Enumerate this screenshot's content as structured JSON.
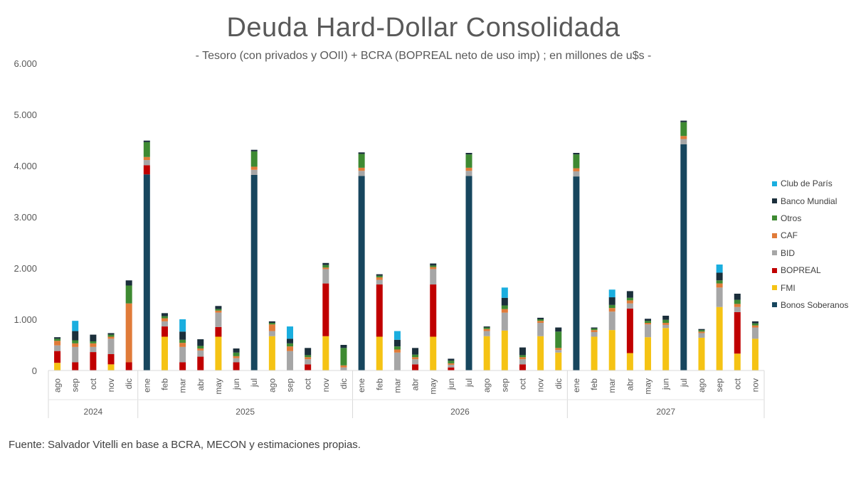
{
  "chart_data": {
    "type": "bar",
    "stacked": true,
    "title": "Deuda Hard-Dollar Consolidada",
    "subtitle": "- Tesoro (con privados y OOII) + BCRA (BOPREAL neto de uso imp) ; en millones de u$s -",
    "ylim": [
      0,
      6000
    ],
    "yticks": [
      "0",
      "1.000",
      "2.000",
      "3.000",
      "4.000",
      "5.000",
      "6.000"
    ],
    "grid": false,
    "legend_position": "right",
    "categories": [
      "ago",
      "sep",
      "oct",
      "nov",
      "dic",
      "ene",
      "feb",
      "mar",
      "abr",
      "may",
      "jun",
      "jul",
      "ago",
      "sep",
      "oct",
      "nov",
      "dic",
      "ene",
      "feb",
      "mar",
      "abr",
      "may",
      "jun",
      "jul",
      "ago",
      "sep",
      "oct",
      "nov",
      "dic",
      "ene",
      "feb",
      "mar",
      "abr",
      "may",
      "jun",
      "jul",
      "ago",
      "sep",
      "oct",
      "nov"
    ],
    "year_groups": [
      {
        "label": "2024",
        "count": 5
      },
      {
        "label": "2025",
        "count": 12
      },
      {
        "label": "2026",
        "count": 12
      },
      {
        "label": "2027",
        "count": 11
      }
    ],
    "series": [
      {
        "name": "Bonos Soberanos",
        "color": "#17465e",
        "values": [
          0,
          0,
          0,
          0,
          0,
          3830,
          0,
          0,
          0,
          0,
          0,
          3820,
          0,
          0,
          0,
          0,
          0,
          3800,
          0,
          0,
          0,
          0,
          0,
          3800,
          0,
          0,
          0,
          0,
          0,
          3790,
          0,
          0,
          0,
          0,
          0,
          4420,
          0,
          0,
          0,
          0
        ]
      },
      {
        "name": "FMI",
        "color": "#f5c314",
        "values": [
          150,
          0,
          0,
          120,
          0,
          0,
          660,
          0,
          0,
          660,
          0,
          0,
          670,
          0,
          0,
          670,
          0,
          0,
          660,
          0,
          0,
          660,
          0,
          0,
          670,
          780,
          0,
          670,
          350,
          0,
          660,
          790,
          340,
          650,
          830,
          0,
          640,
          1240,
          330,
          620
        ]
      },
      {
        "name": "BOPREAL",
        "color": "#c00000",
        "values": [
          230,
          160,
          360,
          200,
          160,
          180,
          200,
          160,
          270,
          190,
          160,
          0,
          0,
          0,
          120,
          1030,
          0,
          0,
          1020,
          0,
          120,
          1020,
          60,
          0,
          0,
          0,
          120,
          0,
          0,
          0,
          0,
          0,
          870,
          0,
          0,
          0,
          0,
          0,
          810,
          0
        ]
      },
      {
        "name": "BID",
        "color": "#a6a6a6",
        "values": [
          110,
          300,
          100,
          300,
          0,
          100,
          100,
          300,
          120,
          280,
          80,
          100,
          100,
          380,
          100,
          280,
          60,
          100,
          90,
          350,
          100,
          300,
          50,
          100,
          100,
          350,
          100,
          260,
          50,
          100,
          90,
          360,
          100,
          250,
          60,
          100,
          90,
          380,
          100,
          220
        ]
      },
      {
        "name": "CAF",
        "color": "#e07b39",
        "values": [
          90,
          70,
          70,
          40,
          1150,
          60,
          60,
          80,
          40,
          40,
          40,
          60,
          130,
          90,
          40,
          30,
          40,
          60,
          50,
          60,
          40,
          40,
          30,
          60,
          40,
          70,
          40,
          40,
          40,
          60,
          40,
          70,
          60,
          30,
          40,
          60,
          30,
          80,
          60,
          40
        ]
      },
      {
        "name": "Otros",
        "color": "#3e8a32",
        "values": [
          40,
          60,
          40,
          40,
          350,
          290,
          40,
          60,
          50,
          30,
          70,
          300,
          30,
          60,
          40,
          50,
          340,
          270,
          30,
          60,
          50,
          30,
          50,
          260,
          30,
          70,
          40,
          30,
          320,
          270,
          30,
          60,
          50,
          40,
          60,
          270,
          30,
          60,
          80,
          40
        ]
      },
      {
        "name": "Banco Mundial",
        "color": "#1b2f3b",
        "values": [
          30,
          180,
          130,
          30,
          100,
          30,
          60,
          160,
          130,
          60,
          80,
          30,
          30,
          90,
          140,
          40,
          60,
          30,
          30,
          130,
          130,
          40,
          40,
          30,
          20,
          150,
          150,
          30,
          80,
          30,
          20,
          150,
          130,
          40,
          80,
          30,
          20,
          150,
          120,
          40
        ]
      },
      {
        "name": "Club de París",
        "color": "#1aaedf",
        "values": [
          0,
          200,
          0,
          0,
          0,
          0,
          0,
          240,
          0,
          0,
          0,
          0,
          0,
          240,
          0,
          0,
          0,
          0,
          0,
          170,
          0,
          0,
          0,
          0,
          0,
          200,
          0,
          0,
          0,
          0,
          0,
          150,
          0,
          0,
          0,
          0,
          0,
          160,
          0,
          0
        ]
      }
    ]
  },
  "legend_order": [
    "Club de París",
    "Banco Mundial",
    "Otros",
    "CAF",
    "BID",
    "BOPREAL",
    "FMI",
    "Bonos Soberanos"
  ],
  "source": "Fuente: Salvador Vitelli en base a BCRA, MECON y estimaciones propias."
}
